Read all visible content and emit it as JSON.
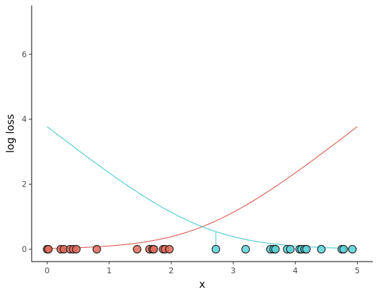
{
  "chart_data": {
    "type": "scatter",
    "xlabel": "x",
    "ylabel": "log loss",
    "xlim": [
      -0.25,
      5.25
    ],
    "ylim": [
      -0.38,
      7.5
    ],
    "x_ticks": [
      "0",
      "1",
      "2",
      "3",
      "4",
      "5"
    ],
    "y_ticks": [
      "0",
      "2",
      "4",
      "6"
    ],
    "grid": false,
    "colors": {
      "red": "#E06A5A",
      "cyan": "#5BD3DB",
      "red_line": "#D9554A",
      "cyan_line": "#45C8D2"
    },
    "series": [
      {
        "color_key": "red",
        "points": [
          [
            0.0,
            0
          ],
          [
            0.02,
            0
          ],
          [
            0.22,
            0
          ],
          [
            0.27,
            0
          ],
          [
            0.37,
            0
          ],
          [
            0.42,
            0
          ],
          [
            0.47,
            0
          ],
          [
            0.8,
            0
          ],
          [
            1.45,
            0
          ],
          [
            1.65,
            0
          ],
          [
            1.7,
            0
          ],
          [
            1.72,
            0
          ],
          [
            1.87,
            0
          ],
          [
            1.9,
            0
          ],
          [
            1.97,
            0
          ]
        ],
        "curve": "log(1 + exp(1.5x - 3.75))"
      },
      {
        "color_key": "cyan",
        "points": [
          [
            2.72,
            0
          ],
          [
            3.2,
            0
          ],
          [
            3.6,
            0
          ],
          [
            3.65,
            0
          ],
          [
            3.68,
            0
          ],
          [
            3.87,
            0
          ],
          [
            3.92,
            0
          ],
          [
            4.07,
            0
          ],
          [
            4.1,
            0
          ],
          [
            4.15,
            0
          ],
          [
            4.18,
            0
          ],
          [
            4.42,
            0
          ],
          [
            4.75,
            0
          ],
          [
            4.78,
            0
          ],
          [
            4.92,
            0
          ]
        ],
        "curve": "log(1 + exp(3.75 - 1.5x))"
      }
    ]
  }
}
